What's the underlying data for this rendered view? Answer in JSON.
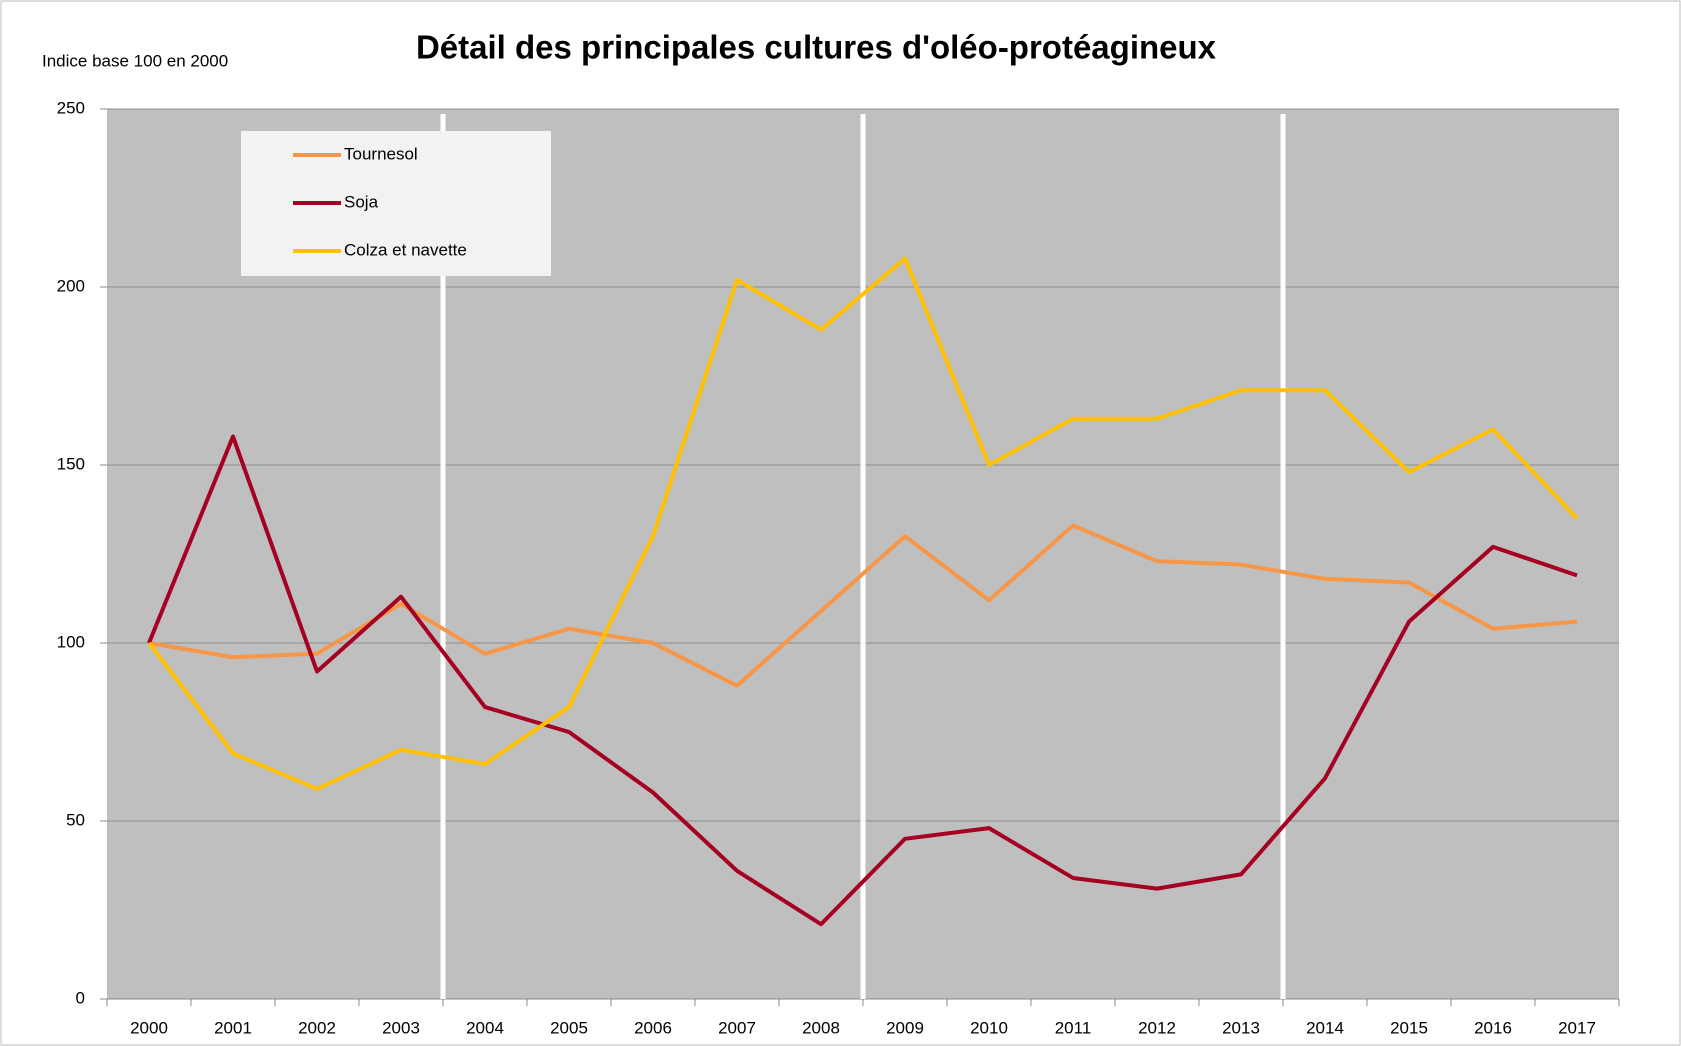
{
  "chart_data": {
    "type": "line",
    "title": "Détail des principales cultures d'oléo-protéagineux",
    "subtitle": "Indice base 100 en 2000",
    "categories": [
      "2000",
      "2001",
      "2002",
      "2003",
      "2004",
      "2005",
      "2006",
      "2007",
      "2008",
      "2009",
      "2010",
      "2011",
      "2012",
      "2013",
      "2014",
      "2015",
      "2016",
      "2017"
    ],
    "series": [
      {
        "name": "Tournesol",
        "color": "#f79646",
        "values": [
          100,
          96,
          97,
          111,
          97,
          104,
          100,
          88,
          109,
          130,
          112,
          133,
          123,
          122,
          118,
          117,
          104,
          106
        ]
      },
      {
        "name": "Soja",
        "color": "#a50021",
        "values": [
          100,
          158,
          92,
          113,
          82,
          75,
          58,
          36,
          21,
          45,
          48,
          34,
          31,
          35,
          62,
          106,
          127,
          119
        ]
      },
      {
        "name": "Colza et navette",
        "color": "#ffc000",
        "values": [
          100,
          69,
          59,
          70,
          66,
          82,
          130,
          202,
          188,
          208,
          150,
          163,
          163,
          171,
          171,
          148,
          160,
          135
        ]
      }
    ],
    "ylim": [
      0,
      250
    ],
    "yticks": [
      0,
      50,
      100,
      150,
      200,
      250
    ],
    "grid": true,
    "legend": "top-left"
  }
}
